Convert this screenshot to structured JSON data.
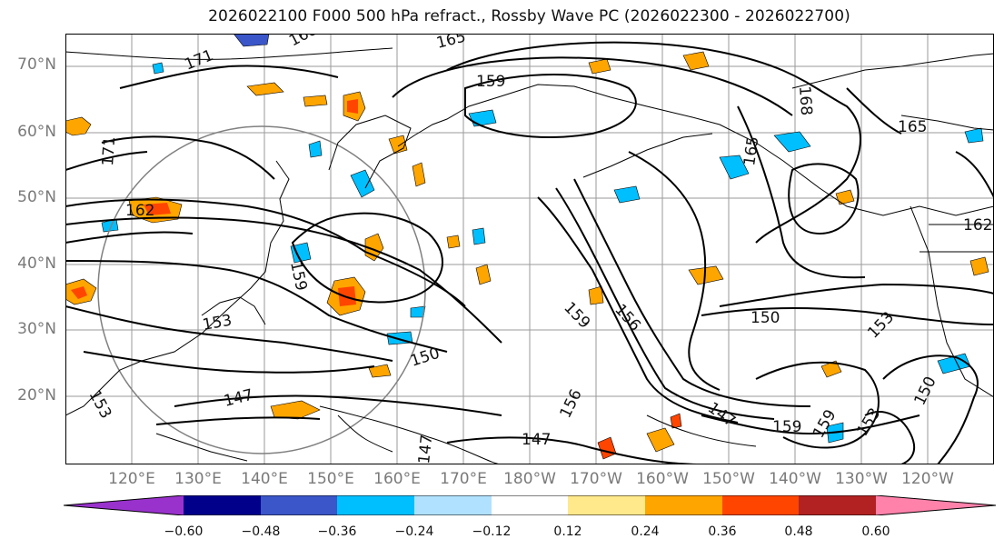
{
  "title": "2026022100 F000 500 hPa refract., Rossby Wave PC (2026022300 - 2026022700)",
  "lat_labels": [
    "70°N",
    "60°N",
    "50°N",
    "40°N",
    "30°N",
    "20°N"
  ],
  "lon_labels": [
    "120°E",
    "130°E",
    "140°E",
    "150°E",
    "160°E",
    "170°E",
    "180°W",
    "170°W",
    "160°W",
    "150°W",
    "140°W",
    "130°W",
    "120°W"
  ],
  "contour_labels": [
    "165",
    "168",
    "171",
    "159",
    "165",
    "165",
    "168",
    "171",
    "162",
    "162",
    "159",
    "150",
    "153",
    "153",
    "150",
    "159",
    "156",
    "147",
    "147",
    "153",
    "147",
    "159",
    "156",
    "150",
    "147",
    "153",
    "159"
  ],
  "colorbar": {
    "ticks": [
      "−0.60",
      "−0.48",
      "−0.36",
      "−0.24",
      "−0.12",
      "0.12",
      "0.24",
      "0.36",
      "0.48",
      "0.60"
    ],
    "colors": [
      "#9932cc",
      "#00008b",
      "#3a56c8",
      "#00bfff",
      "#b0e2ff",
      "#ffffff",
      "#ffe98a",
      "#ffa500",
      "#ff4500",
      "#b22222",
      "#ff82ab"
    ]
  }
}
